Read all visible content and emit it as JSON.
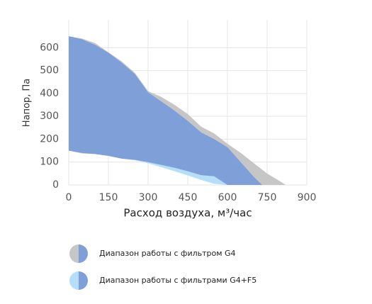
{
  "chart_data": {
    "type": "range-area",
    "y_label": "Напор, Па",
    "x_label": "Расход воздуха, м³/час",
    "xlim": [
      0,
      900
    ],
    "xticks": [
      0,
      150,
      300,
      450,
      600,
      750,
      900
    ],
    "ylim": [
      0,
      700
    ],
    "yticks": [
      0,
      100,
      200,
      300,
      400,
      500,
      600
    ],
    "grid": true,
    "overlap_color": "#7f9fd8",
    "series": [
      {
        "name": "Диапазон работы с фильтром G4",
        "color": "#c6c6c6",
        "x": [
          0,
          50,
          100,
          150,
          200,
          250,
          300,
          350,
          400,
          450,
          500,
          550,
          600,
          650,
          700,
          750,
          800,
          820
        ],
        "high": [
          650,
          640,
          620,
          580,
          540,
          490,
          410,
          385,
          350,
          310,
          255,
          225,
          180,
          140,
          95,
          50,
          15,
          0
        ],
        "low": [
          150,
          138,
          135,
          127,
          115,
          110,
          100,
          88,
          75,
          60,
          43,
          38,
          0,
          0,
          0,
          0,
          0,
          0
        ]
      },
      {
        "name": "Диапазон работы с фильтрами G4+F5",
        "color": "#b5def8",
        "x": [
          0,
          50,
          100,
          150,
          200,
          250,
          300,
          350,
          400,
          450,
          500,
          550,
          600,
          650,
          700,
          731
        ],
        "high": [
          650,
          637,
          612,
          578,
          535,
          485,
          405,
          365,
          325,
          280,
          230,
          200,
          165,
          100,
          35,
          0
        ],
        "low": [
          150,
          140,
          135,
          127,
          115,
          108,
          95,
          78,
          60,
          42,
          22,
          5,
          0,
          0,
          0,
          0
        ]
      }
    ]
  }
}
